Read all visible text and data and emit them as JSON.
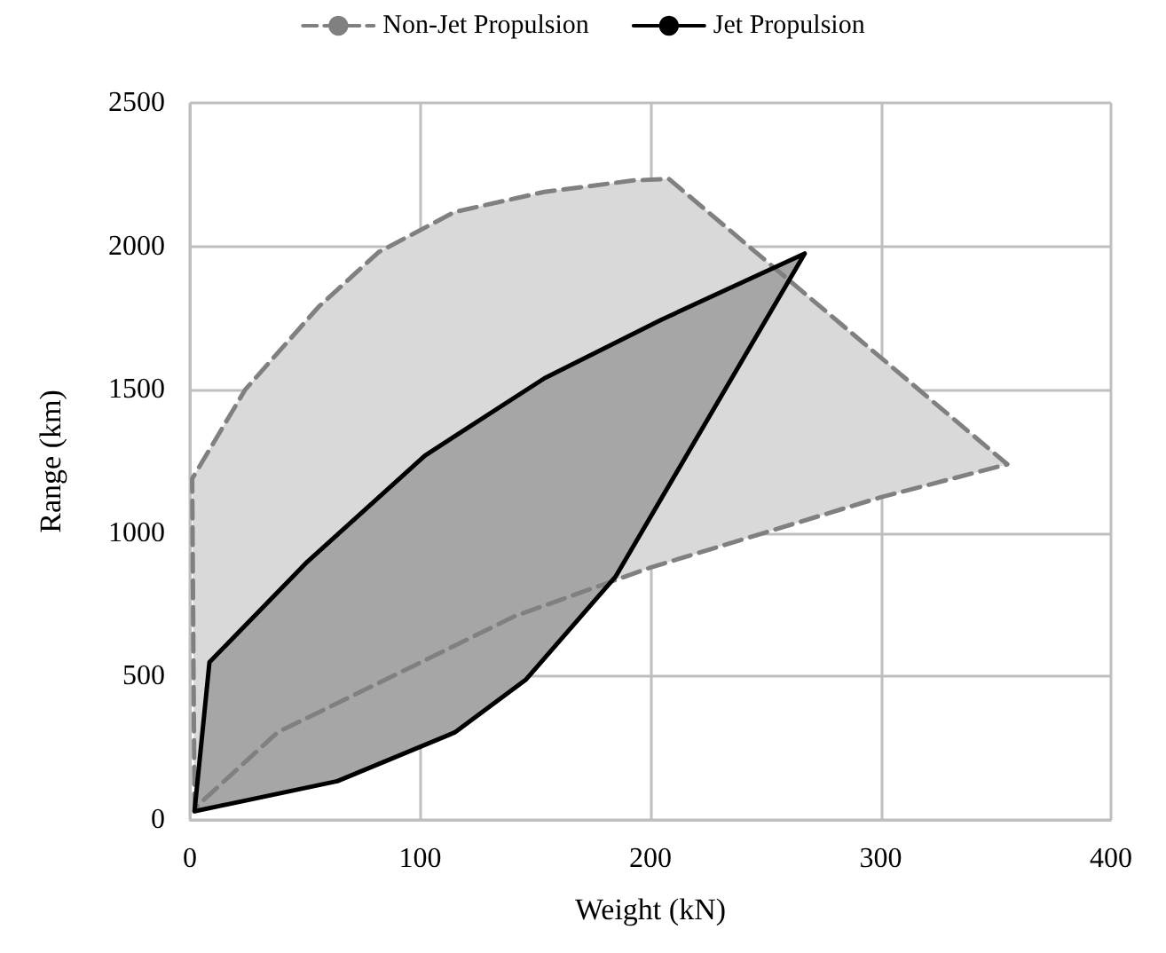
{
  "chart_data": {
    "type": "area",
    "xlabel": "Weight (kN)",
    "ylabel": "Range (km)",
    "xlim": [
      0,
      400
    ],
    "xticks": [
      0,
      100,
      200,
      300,
      400
    ],
    "ylim": [
      0,
      2500
    ],
    "yticks": [
      0,
      500,
      1000,
      1500,
      2000,
      2500
    ],
    "grid": true,
    "legend": "top",
    "series": [
      {
        "name": "Non-Jet Propulsion",
        "color": "#808080",
        "line_style": "dashed",
        "x": [
          2,
          1,
          24,
          56,
          82,
          115,
          154,
          193,
          208,
          355,
          300,
          200,
          141,
          89,
          38,
          2
        ],
        "values": [
          30,
          1190,
          1500,
          1790,
          1980,
          2120,
          2190,
          2230,
          2235,
          1240,
          1125,
          880,
          710,
          505,
          305,
          40
        ]
      },
      {
        "name": "Jet Propulsion",
        "color": "#000000",
        "line_style": "solid",
        "x": [
          2,
          8.5,
          51,
          102,
          154,
          205,
          267,
          185,
          146,
          115,
          64
        ],
        "values": [
          30,
          550,
          900,
          1270,
          1540,
          1745,
          1975,
          850,
          490,
          305,
          135
        ]
      }
    ]
  }
}
